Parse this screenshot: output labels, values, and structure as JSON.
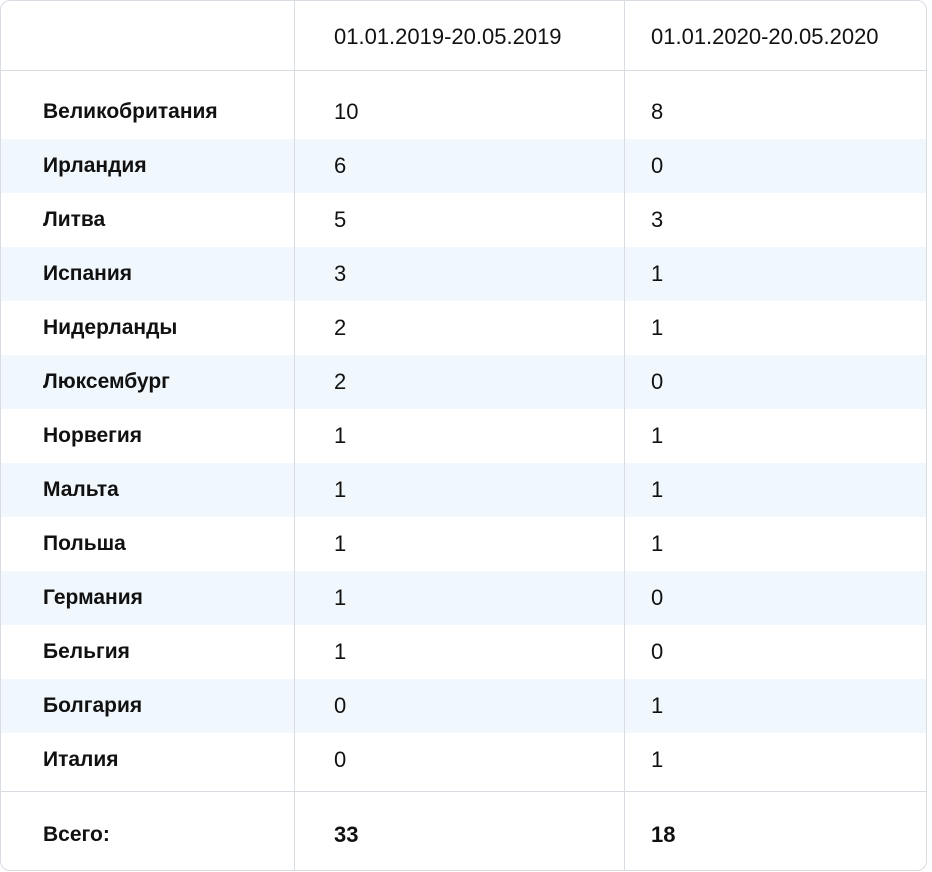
{
  "table": {
    "header": {
      "col1": "",
      "col2": "01.01.2019-20.05.2019",
      "col3": "01.01.2020-20.05.2020"
    },
    "rows": [
      {
        "country": "Великобритания",
        "v2019": "10",
        "v2020": "8"
      },
      {
        "country": "Ирландия",
        "v2019": "6",
        "v2020": "0"
      },
      {
        "country": "Литва",
        "v2019": "5",
        "v2020": "3"
      },
      {
        "country": "Испания",
        "v2019": "3",
        "v2020": "1"
      },
      {
        "country": "Нидерланды",
        "v2019": "2",
        "v2020": "1"
      },
      {
        "country": "Люксембург",
        "v2019": "2",
        "v2020": "0"
      },
      {
        "country": "Норвегия",
        "v2019": "1",
        "v2020": "1"
      },
      {
        "country": "Мальта",
        "v2019": "1",
        "v2020": "1"
      },
      {
        "country": "Польша",
        "v2019": "1",
        "v2020": "1"
      },
      {
        "country": "Германия",
        "v2019": "1",
        "v2020": "0"
      },
      {
        "country": "Бельгия",
        "v2019": "1",
        "v2020": "0"
      },
      {
        "country": "Болгария",
        "v2019": "0",
        "v2020": "1"
      },
      {
        "country": "Италия",
        "v2019": "0",
        "v2020": "1"
      }
    ],
    "total": {
      "label": "Всего:",
      "v2019": "33",
      "v2020": "18"
    }
  },
  "colors": {
    "border": "#d8dde3",
    "stripe": "#f1f8fd",
    "text": "#111111"
  }
}
